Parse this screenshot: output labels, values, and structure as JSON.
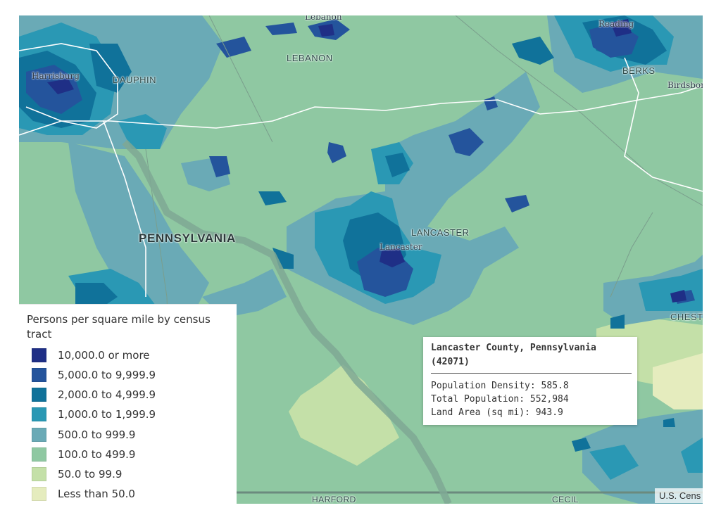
{
  "map": {
    "labels": {
      "lebanon_city": "Lebanon",
      "reading": "Reading",
      "lebanon_county": "LEBANON",
      "berks": "BERKS",
      "harrisburg": "Harrisburg",
      "dauphin": "DAUPHIN",
      "birdsboro": "Birdsbor",
      "pennsylvania": "PENNSYLVANIA",
      "lancaster_county": "LANCASTER",
      "lancaster_city": "Lancaster",
      "chester": "CHEST",
      "harford": "HARFORD",
      "cecil": "CECIL"
    },
    "attribution": "U.S. Cens"
  },
  "legend": {
    "title": "Persons per square mile by census tract",
    "items": [
      {
        "label": "10,000.0 or more",
        "color": "#1f2f86"
      },
      {
        "label": "5,000.0 to 9,999.9",
        "color": "#24549c"
      },
      {
        "label": "2,000.0 to 4,999.9",
        "color": "#10729a"
      },
      {
        "label": "1,000.0 to 1,999.9",
        "color": "#2a98b4"
      },
      {
        "label": "500.0 to 999.9",
        "color": "#6aaab6"
      },
      {
        "label": "100.0 to 499.9",
        "color": "#8fc8a2"
      },
      {
        "label": "50.0 to 99.9",
        "color": "#c4e0a8"
      },
      {
        "label": "Less than 50.0",
        "color": "#e5ecbe"
      }
    ]
  },
  "popup": {
    "title": "Lancaster County, Pennsylvania (42071)",
    "rows": [
      {
        "label": "Population Density:",
        "value": "585.8"
      },
      {
        "label": "Total Population:",
        "value": "552,984"
      },
      {
        "label": "Land Area (sq mi):",
        "value": "943.9"
      }
    ]
  }
}
